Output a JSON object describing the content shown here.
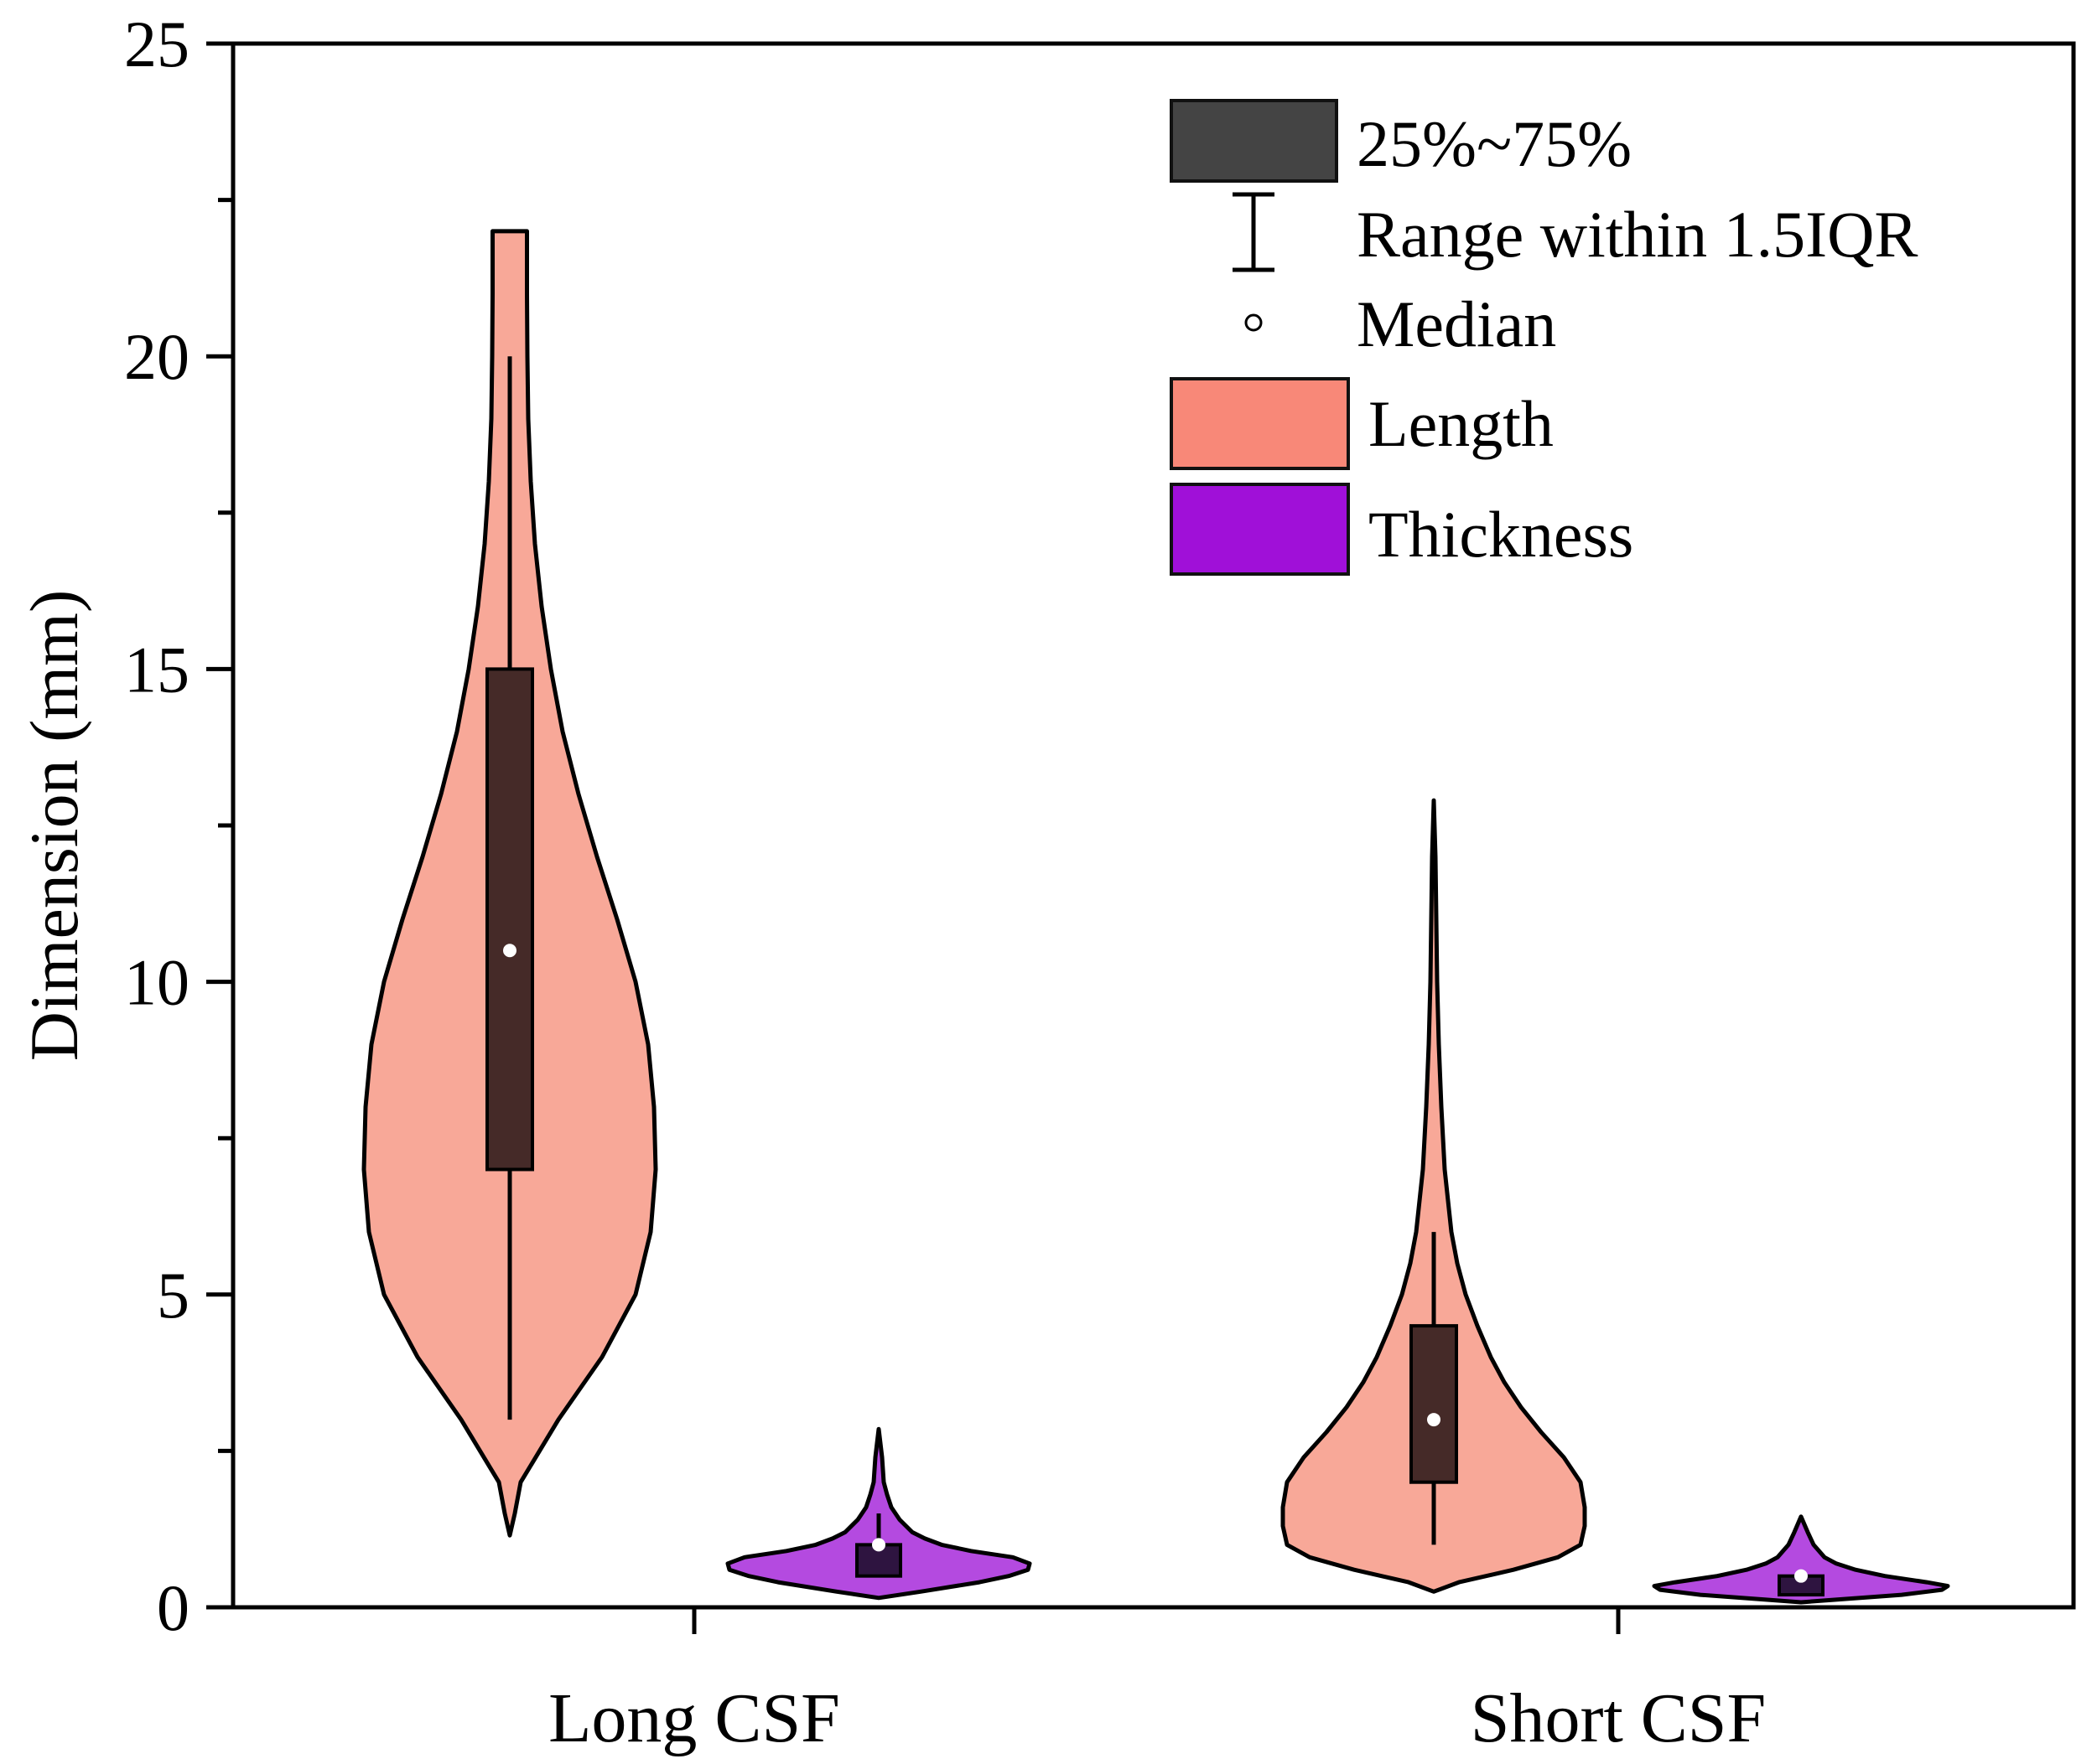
{
  "chart_data": {
    "type": "violin",
    "xlabel": "",
    "ylabel": "Dimension (mm)",
    "ylim": [
      0,
      25
    ],
    "yticks": [
      "0",
      "5",
      "10",
      "15",
      "20",
      "25"
    ],
    "categories": [
      "Long CSF",
      "Short CSF"
    ],
    "series": [
      {
        "name": "Length",
        "color": "#F8A898",
        "box_color": "#452A28",
        "groups": [
          {
            "category": "Long CSF",
            "q1": 7,
            "q3": 15,
            "median": 10.5,
            "whisker_low": 3,
            "whisker_high": 20,
            "min": 1.2,
            "max": 22
          },
          {
            "category": "Short CSF",
            "q1": 2,
            "q3": 4.5,
            "median": 3,
            "whisker_low": 1,
            "whisker_high": 6,
            "min": 0.3,
            "max": 12.9
          }
        ]
      },
      {
        "name": "Thickness",
        "color": "#B44AE0",
        "box_color": "#2E1440",
        "groups": [
          {
            "category": "Long CSF",
            "q1": 0.5,
            "q3": 1,
            "median": 1,
            "whisker_low": 0.5,
            "whisker_high": 1.5,
            "min": 0.2,
            "max": 2.85
          },
          {
            "category": "Short CSF",
            "q1": 0.2,
            "q3": 0.5,
            "median": 0.5,
            "whisker_low": 0.2,
            "whisker_high": 0.5,
            "min": 0.1,
            "max": 1.45
          }
        ]
      }
    ],
    "legend": {
      "position": "top-right",
      "entries": [
        {
          "label": "25%~75%",
          "kind": "box",
          "color": "#444444"
        },
        {
          "label": "Range within 1.5IQR",
          "kind": "whisker",
          "color": "#000000"
        },
        {
          "label": "Median",
          "kind": "median",
          "color": "#ffffff"
        },
        {
          "label": "Length",
          "kind": "fill",
          "color": "#F88878"
        },
        {
          "label": "Thickness",
          "kind": "fill",
          "color": "#A010D8"
        }
      ]
    }
  }
}
